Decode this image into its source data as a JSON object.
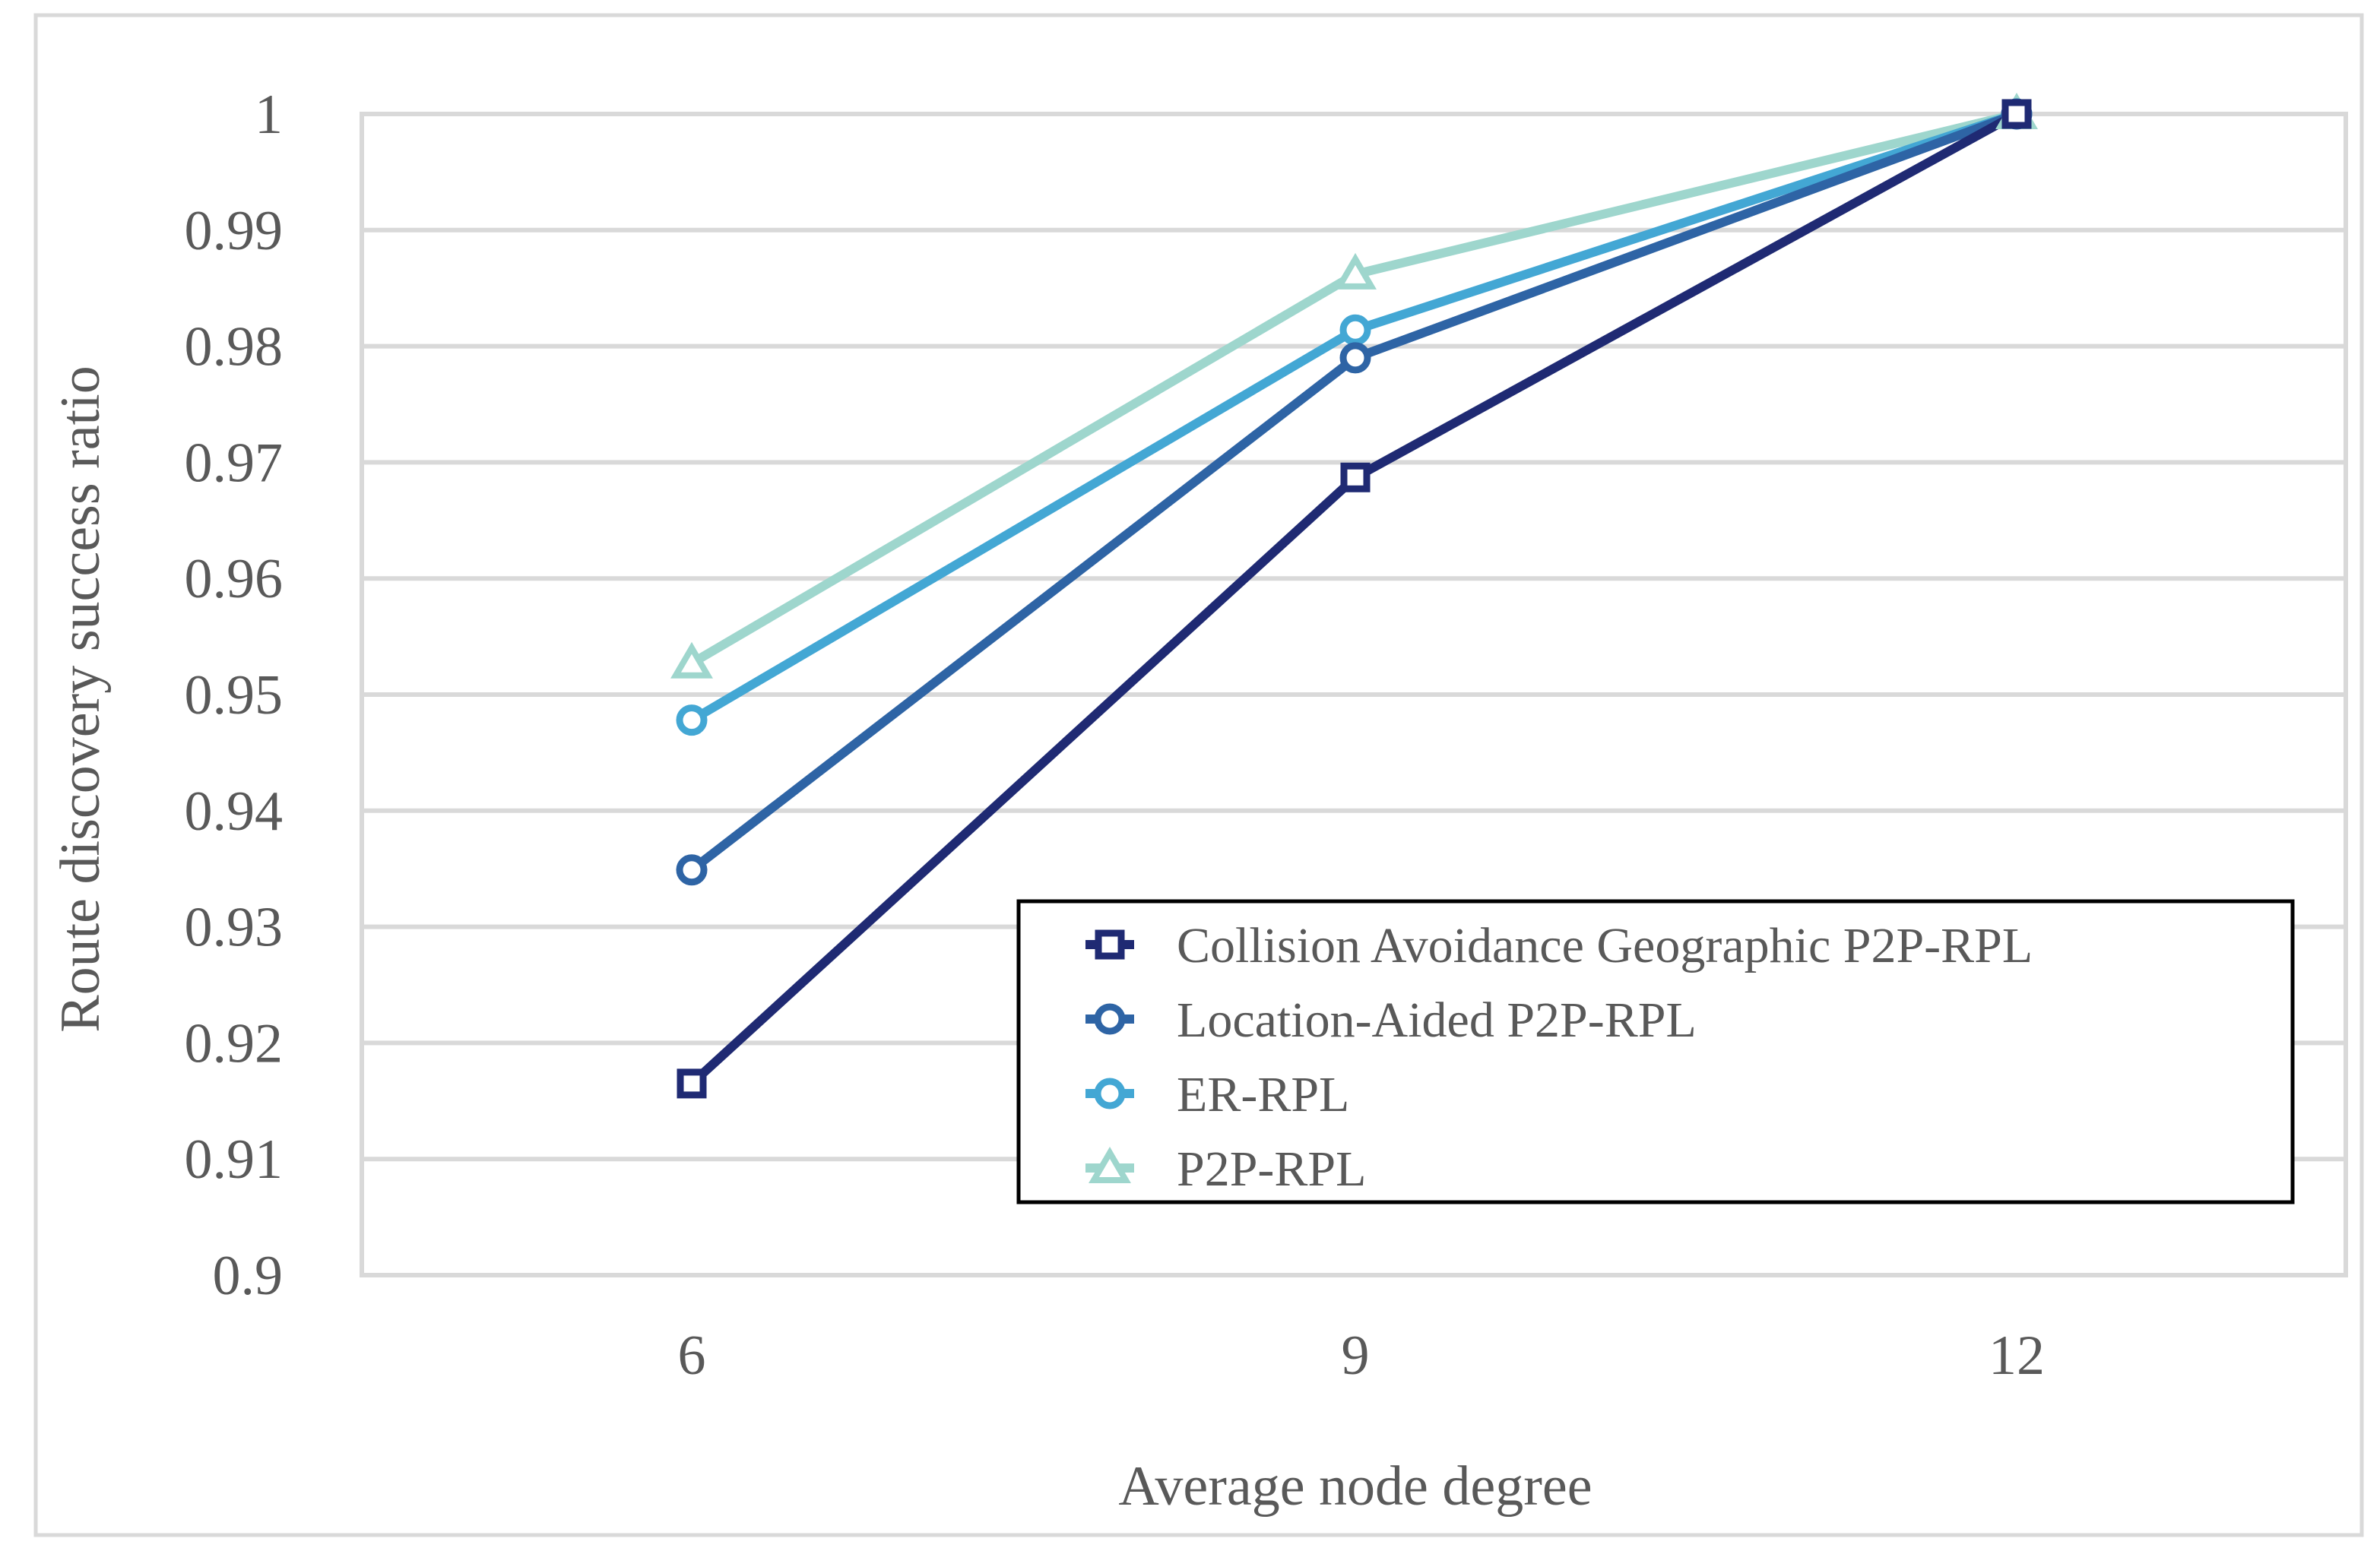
{
  "chart_data": {
    "type": "line",
    "title": "",
    "xlabel": "Average node degree",
    "ylabel": "Route discovery success ratio",
    "categories": [
      "6",
      "9",
      "12"
    ],
    "ylim": [
      0.9,
      1.0
    ],
    "yticks": [
      0.9,
      0.91,
      0.92,
      0.93,
      0.94,
      0.95,
      0.96,
      0.97,
      0.98,
      0.99,
      1.0
    ],
    "ytick_labels": [
      "0.9",
      "0.91",
      "0.92",
      "0.93",
      "0.94",
      "0.95",
      "0.96",
      "0.97",
      "0.98",
      "0.99",
      "1"
    ],
    "grid": "horizontal",
    "legend_position": "bottom-right",
    "series": [
      {
        "name": "Collision Avoidance Geographic P2P-RPL",
        "values": [
          0.9165,
          0.9687,
          1.0
        ],
        "color": "#1F2A73",
        "marker": "square"
      },
      {
        "name": "Location-Aided P2P-RPL",
        "values": [
          0.9349,
          0.979,
          1.0
        ],
        "color": "#2E64A5",
        "marker": "circle"
      },
      {
        "name": "ER-RPL",
        "values": [
          0.9478,
          0.9814,
          1.0
        ],
        "color": "#43A7D4",
        "marker": "circle"
      },
      {
        "name": "P2P-RPL",
        "values": [
          0.9527,
          0.9862,
          1.0
        ],
        "color": "#9ED6CD",
        "marker": "triangle"
      }
    ]
  }
}
